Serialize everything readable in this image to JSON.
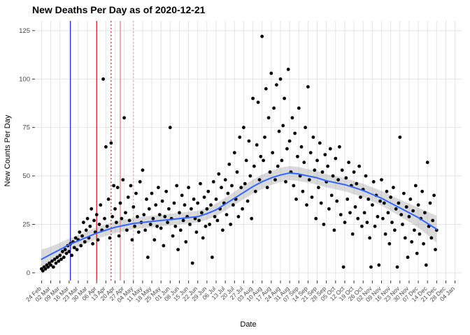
{
  "chart_data": {
    "type": "scatter",
    "title": "New Deaths Per Day as of 2020-12-21",
    "xlabel": "Date",
    "ylabel": "New Counts Per Day",
    "ylim": [
      -4,
      130
    ],
    "yticks": [
      0,
      25,
      50,
      75,
      100,
      125
    ],
    "x_tick_labels": [
      "24 Feb",
      "02 Mar",
      "09 Mar",
      "16 Mar",
      "23 Mar",
      "30 Mar",
      "06 Apr",
      "13 Apr",
      "20 Apr",
      "27 Apr",
      "04 May",
      "11 May",
      "18 May",
      "25 May",
      "01 Jun",
      "08 Jun",
      "15 Jun",
      "22 Jun",
      "29 Jun",
      "06 Jul",
      "13 Jul",
      "20 Jul",
      "27 Jul",
      "03 Aug",
      "10 Aug",
      "17 Aug",
      "24 Aug",
      "31 Aug",
      "07 Sep",
      "14 Sep",
      "21 Sep",
      "28 Sep",
      "05 Oct",
      "12 Oct",
      "19 Oct",
      "26 Oct",
      "02 Nov",
      "09 Nov",
      "16 Nov",
      "23 Nov",
      "30 Nov",
      "07 Dec",
      "14 Dec",
      "21 Dec",
      "28 Dec",
      "04 Jan"
    ],
    "points": {
      "x_unit": "days since 24 Feb 2020, one point per day through 21 Dec",
      "values": [
        2,
        1,
        3,
        2,
        4,
        3,
        5,
        4,
        6,
        3,
        7,
        5,
        8,
        6,
        9,
        7,
        11,
        8,
        12,
        10,
        14,
        11,
        15,
        9,
        16,
        13,
        18,
        12,
        17,
        21,
        14,
        19,
        26,
        16,
        22,
        28,
        18,
        24,
        33,
        15,
        27,
        21,
        30,
        17,
        25,
        35,
        22,
        100,
        28,
        65,
        24,
        38,
        18,
        67,
        29,
        45,
        33,
        26,
        44,
        19,
        36,
        28,
        48,
        80,
        31,
        22,
        39,
        27,
        45,
        17,
        34,
        24,
        41,
        29,
        21,
        47,
        26,
        53,
        30,
        22,
        38,
        8,
        33,
        25,
        41,
        28,
        17,
        35,
        24,
        44,
        30,
        23,
        37,
        14,
        29,
        42,
        26,
        33,
        75,
        28,
        19,
        36,
        24,
        45,
        12,
        31,
        22,
        40,
        27,
        35,
        16,
        29,
        44,
        25,
        33,
        5,
        38,
        28,
        21,
        36,
        27,
        46,
        31,
        18,
        39,
        24,
        33,
        42,
        25,
        35,
        8,
        47,
        29,
        38,
        27,
        51,
        33,
        44,
        22,
        36,
        48,
        30,
        41,
        56,
        25,
        45,
        35,
        62,
        38,
        52,
        29,
        70,
        44,
        33,
        75,
        46,
        58,
        37,
        68,
        50,
        28,
        90,
        55,
        42,
        66,
        88,
        48,
        60,
        122,
        58,
        70,
        95,
        44,
        80,
        52,
        103,
        62,
        85,
        48,
        97,
        55,
        73,
        100,
        58,
        76,
        90,
        47,
        64,
        105,
        68,
        52,
        80,
        45,
        72,
        38,
        60,
        85,
        50,
        65,
        42,
        57,
        75,
        35,
        96,
        48,
        62,
        39,
        70,
        53,
        28,
        58,
        44,
        67,
        36,
        52,
        25,
        61,
        47,
        55,
        33,
        64,
        40,
        50,
        22,
        59,
        37,
        48,
        65,
        30,
        53,
        3,
        26,
        49,
        38,
        57,
        31,
        45,
        20,
        52,
        34,
        46,
        28,
        55,
        39,
        24,
        43,
        31,
        50,
        26,
        38,
        18,
        3,
        35,
        47,
        24,
        40,
        29,
        4,
        37,
        48,
        28,
        36,
        20,
        42,
        31,
        15,
        39,
        26,
        44,
        22,
        33,
        3,
        36,
        70,
        30,
        25,
        41,
        18,
        34,
        8,
        29,
        38,
        16,
        32,
        22,
        45,
        10,
        35,
        20,
        28,
        42,
        15,
        31,
        4,
        57,
        24,
        36,
        18,
        27,
        40,
        12,
        22
      ]
    },
    "smooth": {
      "name": "loess smooth with confidence band",
      "days": [
        0,
        7,
        14,
        21,
        28,
        35,
        42,
        49,
        56,
        63,
        70,
        77,
        84,
        91,
        98,
        105,
        112,
        119,
        126,
        133,
        140,
        147,
        154,
        161,
        168,
        175,
        182,
        189,
        196,
        203,
        210,
        217,
        224,
        231,
        238,
        245,
        252,
        259,
        266,
        273,
        280,
        287,
        294,
        301
      ],
      "values": [
        7.0,
        9.5,
        12.0,
        14.5,
        16.5,
        18.5,
        20.5,
        22.0,
        23.5,
        24.5,
        25.5,
        26.0,
        26.5,
        27.0,
        27.5,
        28.0,
        28.5,
        29.0,
        30.5,
        32.5,
        35.5,
        38.5,
        41.5,
        44.5,
        47.0,
        49.0,
        50.5,
        51.5,
        51.0,
        50.0,
        49.0,
        47.5,
        46.5,
        45.5,
        44.0,
        42.5,
        40.5,
        38.5,
        36.0,
        33.5,
        31.0,
        28.5,
        25.5,
        22.5
      ],
      "ci_halfwidth": [
        5.0,
        4.0,
        3.5,
        3.2,
        3.0,
        3.0,
        3.0,
        3.0,
        3.0,
        3.0,
        3.0,
        3.0,
        3.0,
        3.0,
        3.0,
        3.0,
        3.0,
        3.0,
        3.1,
        3.2,
        3.3,
        3.4,
        3.5,
        3.6,
        3.7,
        3.7,
        3.7,
        3.6,
        3.6,
        3.5,
        3.5,
        3.4,
        3.4,
        3.4,
        3.4,
        3.5,
        3.6,
        3.8,
        4.0,
        4.3,
        4.7,
        5.2,
        6.0,
        7.0
      ]
    },
    "vlines": [
      {
        "day": 22,
        "color": "#2424cc",
        "style": "solid",
        "name": "blue-event-line"
      },
      {
        "day": 42,
        "color": "#cc2222",
        "style": "solid",
        "name": "red-solid-event-line"
      },
      {
        "day": 53,
        "color": "#cc3333",
        "style": "dotted",
        "name": "red-dotted-event-line"
      },
      {
        "day": 60,
        "color": "#dd8888",
        "style": "solid",
        "name": "pale-red-event-line"
      },
      {
        "day": 70,
        "color": "#ddaaaa",
        "style": "dotted",
        "name": "pale-dotted-event-line"
      }
    ],
    "colors": {
      "point": "#000000",
      "smooth_line": "#3366ff",
      "ribbon": "rgba(150,150,150,0.35)",
      "grid": "#e4e4e4",
      "axis_text": "#474747",
      "tick": "#333333"
    }
  }
}
